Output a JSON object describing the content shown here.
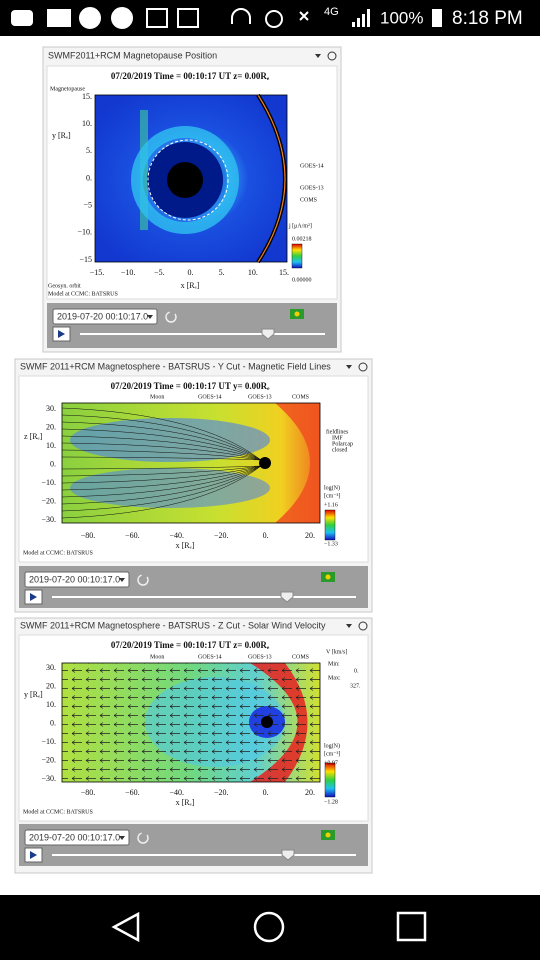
{
  "status_bar": {
    "network": "4G",
    "battery": "100%",
    "time": "8:18 PM"
  },
  "panels": [
    {
      "title": "SWMF2011+RCM Magnetopause Position",
      "plot_title": "07/20/2019 Time = 00:10:17 UT z= 0.00Rₑ",
      "legend": [
        "Magnetopause"
      ],
      "yticks": [
        "15.",
        "10.",
        "5.",
        "0.",
        "−5",
        "−10.",
        "−15"
      ],
      "xticks": [
        "−15.",
        "−10.",
        "−5.",
        "0.",
        "5.",
        "10.",
        "15."
      ],
      "ylabel": "y [Rₑ]",
      "xlabel": "x [Rₑ]",
      "side_legend": [
        "GOES-14",
        "GOES-13",
        "COMS"
      ],
      "colorbar": [
        "j [μA/m²]",
        "0.00218",
        "0.00000"
      ],
      "footer": [
        "Geosyn. orbit",
        "Model at CCMC: BATSRUS"
      ],
      "timestamp": "2019-07-20 00:10:17.0"
    },
    {
      "title": "SWMF 2011+RCM Magnetosphere - BATSRUS - Y Cut - Magnetic Field Lines",
      "plot_title": "07/20/2019 Time = 00:10:17 UT y= 0.00Rₑ",
      "legend": [
        "Moon",
        "GOES-14",
        "GOES-13",
        "COMS"
      ],
      "yticks": [
        "30.",
        "20.",
        "10.",
        "0.",
        "−10.",
        "−20.",
        "−30."
      ],
      "xticks": [
        "−80.",
        "−60.",
        "−40.",
        "−20.",
        "0.",
        "20."
      ],
      "ylabel": "z [Rₑ]",
      "xlabel": "x [Rₑ]",
      "side_legend": [
        "fieldlines",
        "IMF",
        "Polarcap",
        "closed"
      ],
      "colorbar": [
        "log(N)",
        "[cm⁻³]",
        "+1.16",
        "−1.33"
      ],
      "footer": [
        "Model at CCMC: BATSRUS"
      ],
      "timestamp": "2019-07-20 00:10:17.0"
    },
    {
      "title": "SWMF 2011+RCM Magnetosphere - BATSRUS - Z Cut - Solar Wind Velocity",
      "plot_title": "07/20/2019 Time = 00:10:17 UT z= 0.00Rₑ",
      "legend": [
        "Moon",
        "GOES-14",
        "GOES-13",
        "COMS"
      ],
      "yticks": [
        "30.",
        "20.",
        "10.",
        "0.",
        "−10.",
        "−20.",
        "−30."
      ],
      "xticks": [
        "−80.",
        "−60.",
        "−40.",
        "−20.",
        "0.",
        "20."
      ],
      "ylabel": "y [Rₑ]",
      "xlabel": "x [Rₑ]",
      "side_legend": [
        "V [km/s]",
        "Min:",
        "0.",
        "Max:",
        "327."
      ],
      "colorbar": [
        "log(N)",
        "[cm⁻³]",
        "+0.97",
        "−1.28"
      ],
      "footer": [
        "Model at CCMC: BATSRUS"
      ],
      "timestamp": "2019-07-20 00:10:17.0"
    }
  ]
}
